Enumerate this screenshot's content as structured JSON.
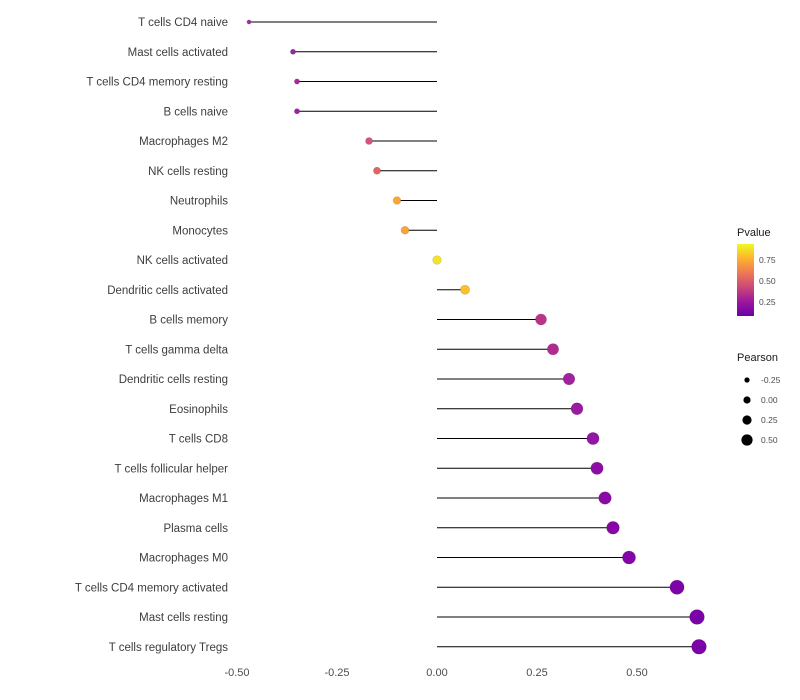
{
  "chart_data": {
    "type": "lollipop",
    "title": "",
    "xlabel": "",
    "ylabel": "",
    "grid": false,
    "xlim": [
      -0.55,
      0.7
    ],
    "baseline_x": 0,
    "stem_color": "#000000",
    "x_ticks": [
      -0.5,
      -0.25,
      0.0,
      0.25,
      0.5
    ],
    "x_tick_labels": [
      "-0.50",
      "-0.25",
      "0.00",
      "0.25",
      "0.50"
    ],
    "points": [
      {
        "label": "T cells CD4 naive",
        "pearson": -0.47,
        "color": "#a32ea1"
      },
      {
        "label": "Mast cells activated",
        "pearson": -0.36,
        "color": "#952ba4"
      },
      {
        "label": "T cells CD4 memory resting",
        "pearson": -0.35,
        "color": "#ad279c"
      },
      {
        "label": "B cells naive",
        "pearson": -0.35,
        "color": "#9c21a3"
      },
      {
        "label": "Macrophages M2",
        "pearson": -0.17,
        "color": "#d5537f"
      },
      {
        "label": "NK cells resting",
        "pearson": -0.15,
        "color": "#e16462"
      },
      {
        "label": "Neutrophils",
        "pearson": -0.1,
        "color": "#fca636"
      },
      {
        "label": "Monocytes",
        "pearson": -0.08,
        "color": "#fba238"
      },
      {
        "label": "NK cells activated",
        "pearson": 0.0,
        "color": "#f2e426"
      },
      {
        "label": "Dendritic cells activated",
        "pearson": 0.07,
        "color": "#fbc02a"
      },
      {
        "label": "B cells memory",
        "pearson": 0.26,
        "color": "#bb3488"
      },
      {
        "label": "T cells gamma delta",
        "pearson": 0.29,
        "color": "#b02a90"
      },
      {
        "label": "Dendritic cells resting",
        "pearson": 0.33,
        "color": "#a122a0"
      },
      {
        "label": "Eosinophils",
        "pearson": 0.35,
        "color": "#9c19a2"
      },
      {
        "label": "T cells CD8",
        "pearson": 0.39,
        "color": "#9315a5"
      },
      {
        "label": "T cells follicular helper",
        "pearson": 0.4,
        "color": "#8e0ca6"
      },
      {
        "label": "Macrophages M1",
        "pearson": 0.42,
        "color": "#8b09a5"
      },
      {
        "label": "Plasma cells",
        "pearson": 0.44,
        "color": "#8707a6"
      },
      {
        "label": "Macrophages M0",
        "pearson": 0.48,
        "color": "#8305a7"
      },
      {
        "label": "T cells CD4 memory activated",
        "pearson": 0.6,
        "color": "#7e03a8"
      },
      {
        "label": "Mast cells resting",
        "pearson": 0.65,
        "color": "#7a02a8"
      },
      {
        "label": "T cells regulatory  Tregs",
        "pearson": 0.655,
        "color": "#7a02a8"
      }
    ],
    "legend": {
      "position": "right",
      "pvalue": {
        "title": "Pvalue",
        "ticks": [
          "0.75",
          "0.50",
          "0.25"
        ],
        "gradient": [
          "#f0f921",
          "#fdb32f",
          "#ed7953",
          "#cc4778",
          "#9c179e",
          "#6a00a8"
        ]
      },
      "pearson": {
        "title": "Pearson",
        "dot_color": "#000000",
        "items": [
          {
            "label": "-0.25",
            "r": 2.6
          },
          {
            "label": "0.00",
            "r": 3.6
          },
          {
            "label": "0.25",
            "r": 4.6
          },
          {
            "label": "0.50",
            "r": 5.6
          }
        ]
      }
    }
  }
}
